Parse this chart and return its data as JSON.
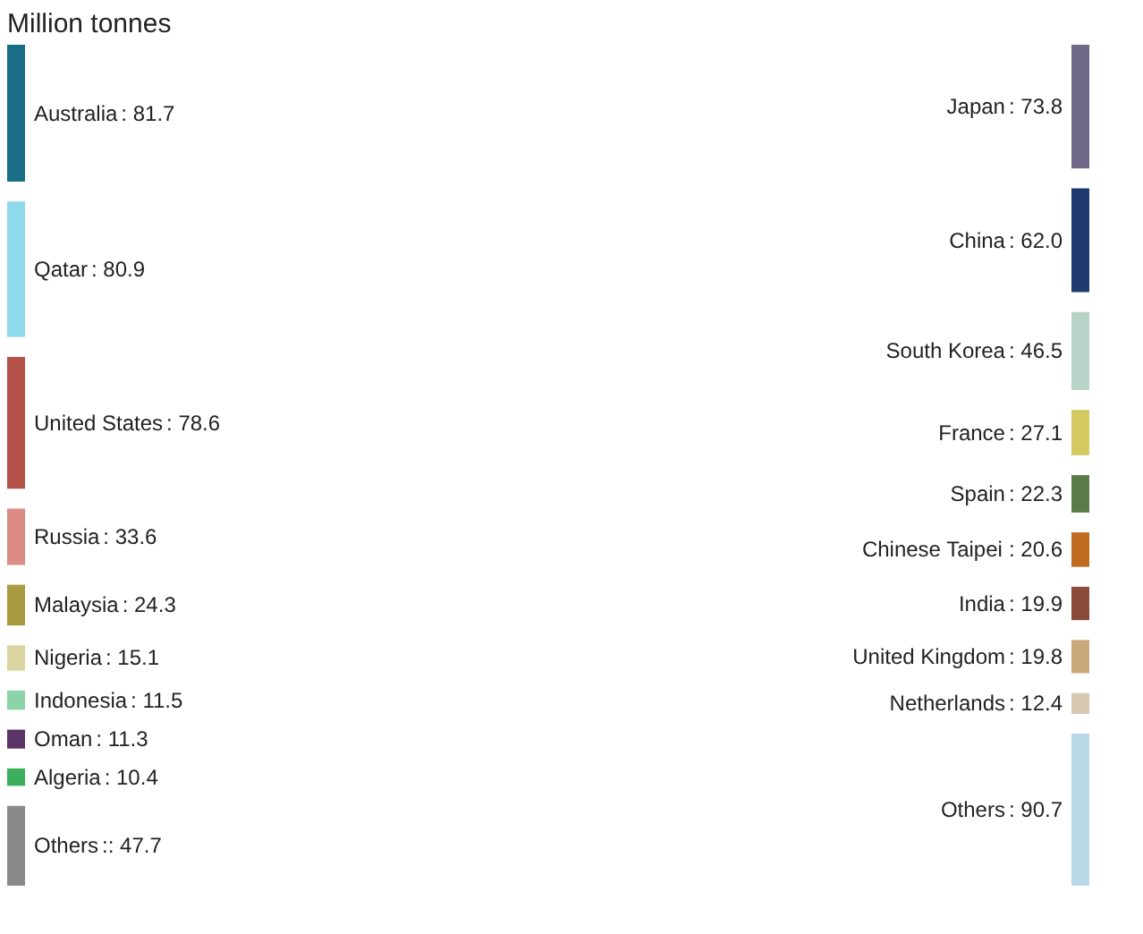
{
  "chart_data": [
    {
      "type": "other",
      "title": "Million tonnes",
      "categories": [
        "Australia",
        "Qatar",
        "United States",
        "Russia",
        "Malaysia",
        "Nigeria",
        "Indonesia",
        "Oman",
        "Algeria",
        "Others"
      ],
      "values": [
        81.7,
        80.9,
        78.6,
        33.6,
        24.3,
        15.1,
        11.5,
        11.3,
        10.4,
        47.7
      ],
      "value_labels": [
        ": 81.7",
        ": 80.9",
        ": 78.6",
        ": 33.6",
        ": 24.3",
        ": 15.1",
        ": 11.5",
        ": 11.3",
        ": 10.4",
        ":: 47.7"
      ],
      "colors": [
        "#1a6f86",
        "#8fd9ec",
        "#b5524a",
        "#db8a85",
        "#a89a40",
        "#dcd4a0",
        "#8dd3a8",
        "#5c3566",
        "#3daf5c",
        "#8a8a8a"
      ]
    },
    {
      "type": "other",
      "categories": [
        "Japan",
        "China",
        "South Korea",
        "France",
        "Spain",
        "Chinese Taipei",
        "India",
        "United Kingdom",
        "Netherlands",
        "Others"
      ],
      "values": [
        73.8,
        62.0,
        46.5,
        27.1,
        22.3,
        20.6,
        19.9,
        19.8,
        12.4,
        90.7
      ],
      "value_labels": [
        ": 73.8",
        ": 62.0",
        ": 46.5",
        ": 27.1",
        ": 22.3",
        ": 20.6",
        ": 19.9",
        ": 19.8",
        ": 12.4",
        ": 90.7"
      ],
      "colors": [
        "#6e6788",
        "#1f3a6e",
        "#b8d4c8",
        "#d4c860",
        "#5a7a4a",
        "#c06a20",
        "#8a4a3a",
        "#c8a878",
        "#d8c8b0",
        "#b8d8e8"
      ]
    }
  ]
}
